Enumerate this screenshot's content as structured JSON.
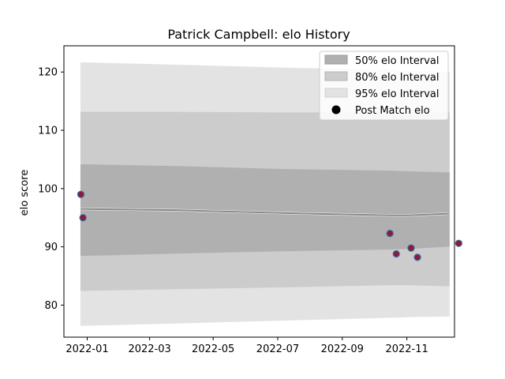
{
  "chart_data": {
    "type": "line",
    "title": "Patrick Campbell: elo History",
    "xlabel": "",
    "ylabel": "elo score",
    "x_tick_labels": [
      "2022-01",
      "2022-03",
      "2022-05",
      "2022-07",
      "2022-09",
      "2022-11"
    ],
    "x_tick_days": [
      17,
      76,
      136,
      197,
      258,
      319
    ],
    "x_range_days": [
      -5,
      364
    ],
    "y_ticks": [
      80,
      90,
      100,
      110,
      120
    ],
    "ylim": [
      74.5,
      124.5
    ],
    "legend_location": "top-right",
    "legend": {
      "band50": "50% elo Interval",
      "band80": "80% elo Interval",
      "band95": "95% elo Interval",
      "points": "Post Match elo"
    },
    "band_x_days": [
      11,
      100,
      200,
      305,
      320,
      359
    ],
    "mean": [
      96.5,
      96.3,
      95.8,
      95.4,
      95.4,
      95.7
    ],
    "upper": [
      96.5,
      96.3,
      95.8,
      95.4,
      95.4,
      95.7
    ],
    "band50": {
      "lower": [
        88.5,
        88.9,
        89.3,
        89.6,
        89.7,
        90.1
      ],
      "upper": [
        104.1,
        103.8,
        103.3,
        103.0,
        102.9,
        102.7
      ]
    },
    "band80": {
      "lower": [
        82.5,
        82.8,
        83.1,
        83.5,
        83.5,
        83.3
      ],
      "upper": [
        113.1,
        113.1,
        113.0,
        113.0,
        113.0,
        113.0
      ]
    },
    "band95": {
      "lower": [
        76.5,
        76.9,
        77.4,
        77.9,
        78.0,
        78.1
      ],
      "upper": [
        121.6,
        121.2,
        120.7,
        120.3,
        120.1,
        120.0
      ]
    },
    "points": [
      {
        "date": "2021-12-12",
        "day": 11,
        "elo": 99.0
      },
      {
        "date": "2021-12-14",
        "day": 13,
        "elo": 95.0
      },
      {
        "date": "2022-09-30",
        "day": 303,
        "elo": 92.3
      },
      {
        "date": "2022-10-06",
        "day": 309,
        "elo": 88.8
      },
      {
        "date": "2022-10-20",
        "day": 323,
        "elo": 89.8
      },
      {
        "date": "2022-10-26",
        "day": 329,
        "elo": 88.2
      },
      {
        "date": "2022-12-04",
        "day": 368,
        "elo": 90.6
      }
    ],
    "colors": {
      "band50": "#b0b0b0",
      "band80": "#cccccc",
      "band95": "#e3e3e3",
      "mean_line": "#888888",
      "point_fill": "#8b1a3d",
      "point_edge": "#3b6a8e"
    }
  }
}
